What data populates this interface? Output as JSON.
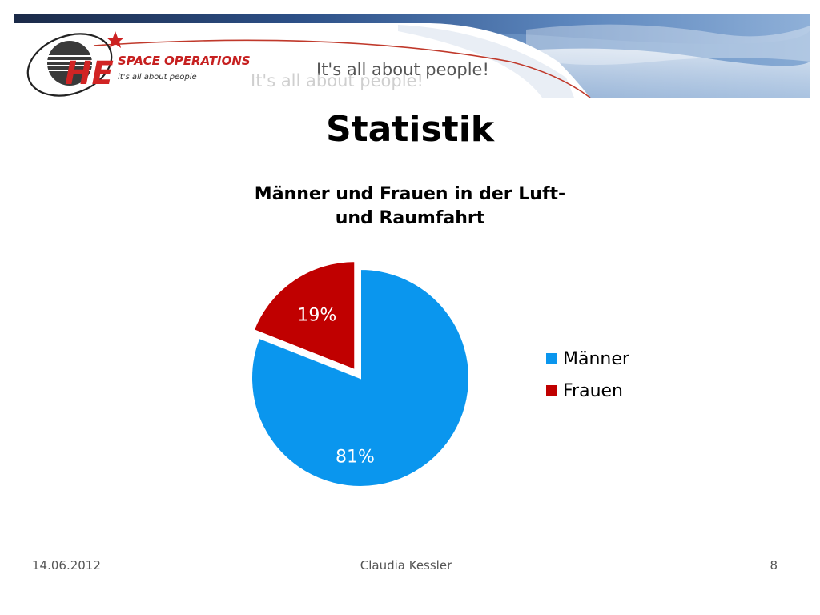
{
  "banner": {
    "logo_letters": "HE",
    "company": "SPACE OPERATIONS",
    "tagline_small": "it's all about people",
    "slogan": "It's all about people!",
    "slogan_reflection": "It's all about people!"
  },
  "slide": {
    "title": "Statistik"
  },
  "chart_data": {
    "type": "pie",
    "title_lines": [
      "Männer und Frauen in der Luft-",
      "und Raumfahrt"
    ],
    "categories": [
      "Männer",
      "Frauen"
    ],
    "values": [
      81,
      19
    ],
    "data_labels": [
      "81%",
      "19%"
    ],
    "colors": [
      "#0A96EE",
      "#C00000"
    ],
    "exploded": [
      false,
      true
    ],
    "legend_position": "right"
  },
  "footer": {
    "date": "14.06.2012",
    "author": "Claudia Kessler",
    "page": "8"
  }
}
